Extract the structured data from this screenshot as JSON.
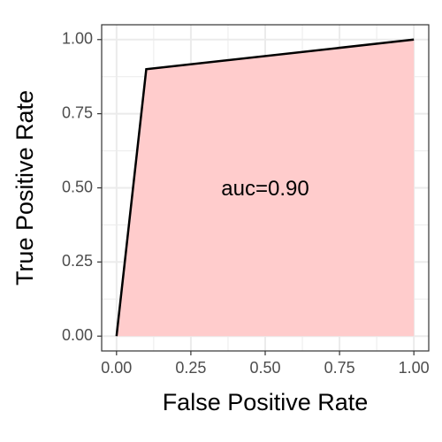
{
  "chart_data": {
    "type": "area",
    "xlabel": "False Positive Rate",
    "ylabel": "True Positive Rate",
    "xlim": [
      0,
      1
    ],
    "ylim": [
      0,
      1
    ],
    "x_ticks": [
      "0.00",
      "0.25",
      "0.50",
      "0.75",
      "1.00"
    ],
    "y_ticks": [
      "0.00",
      "0.25",
      "0.50",
      "0.75",
      "1.00"
    ],
    "grid": true,
    "series": [
      {
        "x": [
          0.0,
          0.1,
          1.0
        ],
        "y": [
          0.0,
          0.9,
          1.0
        ]
      }
    ],
    "annotations": [
      {
        "text": "auc=0.90",
        "x": 0.5,
        "y": 0.5
      }
    ],
    "colors": {
      "fill": "#ffcccc",
      "line": "#000000",
      "grid": "#ebebeb",
      "panel_border": "#333333"
    }
  }
}
